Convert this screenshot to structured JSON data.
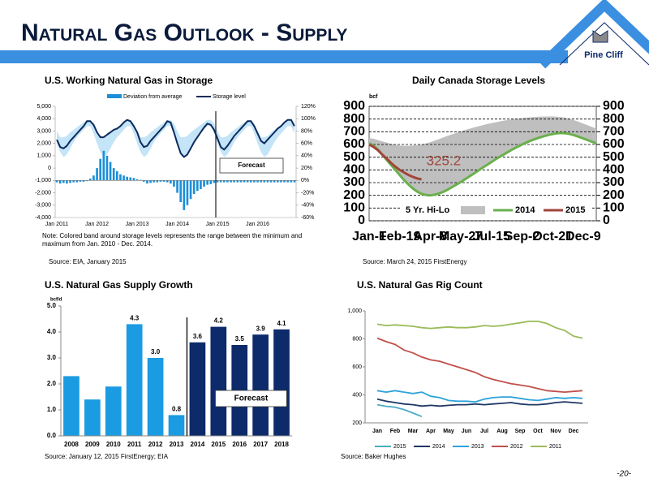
{
  "header": {
    "title": "Natural Gas Outlook - Supply",
    "logo": "Pine Cliff"
  },
  "page_number": "-20-",
  "chart_data": [
    {
      "type": "combo",
      "title": "U.S. Working Natural Gas in Storage",
      "note": "Note:  Colored band around storage levels represents the range between the minimum and maximum from Jan. 2010 - Dec. 2014.",
      "source": "Source:  EIA, January 2015",
      "legend": "top",
      "grid": false,
      "categories": [
        "Jan 2011",
        null,
        null,
        null,
        null,
        null,
        null,
        null,
        null,
        null,
        null,
        null,
        "Jan 2012",
        null,
        null,
        null,
        null,
        null,
        null,
        null,
        null,
        null,
        null,
        null,
        "Jan 2013",
        null,
        null,
        null,
        null,
        null,
        null,
        null,
        null,
        null,
        null,
        null,
        "Jan 2014",
        null,
        null,
        null,
        null,
        null,
        null,
        null,
        null,
        null,
        null,
        null,
        "Jan 2015",
        null,
        null,
        null,
        null,
        null,
        null,
        null,
        null,
        null,
        null,
        null,
        "Jan 2016",
        null,
        null,
        null,
        null,
        null,
        null,
        null,
        null,
        null,
        null,
        null
      ],
      "ylim": [
        -4000,
        5000
      ],
      "yticks": [
        {
          "value": 5000,
          "label": "5,000"
        },
        {
          "value": 4000,
          "label": "4,000"
        },
        {
          "value": 3000,
          "label": "3,000"
        },
        {
          "value": 2000,
          "label": "2,000"
        },
        {
          "value": 1000,
          "label": "1,000"
        },
        0,
        {
          "value": -1000,
          "label": "-1,000"
        },
        {
          "value": -2000,
          "label": "-2,000"
        },
        {
          "value": -3000,
          "label": "-3,000"
        },
        {
          "value": -4000,
          "label": "-4,000"
        }
      ],
      "y2lim": [
        -60,
        120
      ],
      "y2ticks": [
        {
          "value": 120,
          "label": "120%"
        },
        {
          "value": 100,
          "label": "100%"
        },
        {
          "value": 80,
          "label": "80%"
        },
        {
          "value": 60,
          "label": "60%"
        },
        {
          "value": 40,
          "label": "40%"
        },
        {
          "value": 20,
          "label": "20%"
        },
        {
          "value": 0,
          "label": "0%"
        },
        {
          "value": -20,
          "label": "-20%"
        },
        {
          "value": -40,
          "label": "-40%"
        },
        {
          "value": -60,
          "label": "-60%"
        }
      ],
      "band": {
        "color": "#c4e4f7",
        "lower": [
          2000,
          1300,
          900,
          1100,
          1600,
          2100,
          2500,
          2800,
          3100,
          3400,
          3400,
          2800,
          2000,
          1300,
          900,
          1100,
          1600,
          2100,
          2500,
          2800,
          3100,
          3400,
          3400,
          2800,
          2000,
          1300,
          900,
          1100,
          1600,
          2100,
          2500,
          2800,
          3100,
          3400,
          3400,
          2800,
          2000,
          1300,
          900,
          1100,
          1600,
          2100,
          2500,
          2800,
          3100,
          3400,
          3400,
          2800,
          2000,
          1300,
          900,
          1100,
          1600,
          2100,
          2500,
          2800,
          3100,
          3400,
          3400,
          2800,
          2000,
          1300,
          900,
          1100,
          1600,
          2100,
          2500,
          2800,
          3100,
          3400,
          3400,
          2800
        ],
        "upper": [
          3000,
          2500,
          2500,
          2600,
          2900,
          3100,
          3300,
          3500,
          3700,
          3900,
          3900,
          3600,
          3000,
          2500,
          2500,
          2600,
          2900,
          3100,
          3300,
          3500,
          3700,
          3900,
          3900,
          3600,
          3000,
          2500,
          2500,
          2600,
          2900,
          3100,
          3300,
          3500,
          3700,
          3900,
          3900,
          3600,
          3000,
          2500,
          2500,
          2600,
          2900,
          3100,
          3300,
          3500,
          3700,
          3900,
          3900,
          3600,
          3000,
          2500,
          2500,
          2600,
          2900,
          3100,
          3300,
          3500,
          3700,
          3900,
          3900,
          3600,
          3000,
          2500,
          2500,
          2600,
          2900,
          3100,
          3300,
          3500,
          3700,
          3900,
          3900,
          3600
        ]
      },
      "series": [
        {
          "name": "Deviation from average",
          "kind": "bar",
          "axis": "y2",
          "color": "#1b8fd8",
          "values": [
            -3,
            -5,
            -4,
            -5,
            -4,
            -3,
            -3,
            -2,
            -2,
            -1,
            3,
            8,
            20,
            35,
            48,
            40,
            30,
            20,
            15,
            10,
            8,
            6,
            5,
            4,
            2,
            1,
            -2,
            -5,
            -4,
            -3,
            -3,
            -2,
            -2,
            -3,
            -5,
            -10,
            -20,
            -35,
            -48,
            -40,
            -30,
            -22,
            -17,
            -14,
            -10,
            -7,
            -6,
            -4,
            -3,
            -3,
            -3,
            -3,
            -3,
            -3,
            -3,
            -3,
            -3,
            -3,
            -3,
            -3,
            -3,
            -3,
            -3,
            -3,
            -3,
            -3,
            -3,
            -3,
            -3,
            -3,
            -3,
            -3
          ]
        },
        {
          "name": "Storage level",
          "kind": "line",
          "axis": "y",
          "color": "#0d2a5e",
          "values": [
            2300,
            1700,
            1600,
            1800,
            2200,
            2500,
            2800,
            3100,
            3400,
            3800,
            3800,
            3500,
            2900,
            2500,
            2500,
            2700,
            2900,
            3100,
            3200,
            3400,
            3700,
            3900,
            3800,
            3400,
            2900,
            2100,
            1700,
            1800,
            2200,
            2500,
            2800,
            3100,
            3400,
            3800,
            3700,
            2900,
            2000,
            1200,
            900,
            1100,
            1600,
            2100,
            2500,
            2900,
            3300,
            3600,
            3500,
            3100,
            2400,
            1700,
            1500,
            1800,
            2200,
            2600,
            2900,
            3200,
            3500,
            3800,
            3800,
            3400,
            2800,
            2200,
            2000,
            2300,
            2600,
            2900,
            3200,
            3400,
            3700,
            3900,
            3900,
            3400
          ]
        }
      ],
      "annotations": [
        {
          "text": "Forecast",
          "at": "Jan 2015"
        }
      ]
    },
    {
      "type": "area_line",
      "title": "Daily Canada Storage Levels",
      "y_unit": "bcf",
      "source": "Source: March 24, 2015 FirstEnergy",
      "legend": "bottom",
      "grid": true,
      "categories": [
        "Jan-1",
        null,
        null,
        null,
        null,
        null,
        null,
        "Feb-19",
        null,
        null,
        null,
        null,
        null,
        null,
        "Apr-8",
        null,
        null,
        null,
        null,
        null,
        null,
        "May-27",
        null,
        null,
        null,
        null,
        null,
        null,
        "Jul-15",
        null,
        null,
        null,
        null,
        null,
        null,
        "Sep-2",
        null,
        null,
        null,
        null,
        null,
        null,
        "Oct-21",
        null,
        null,
        null,
        null,
        null,
        null,
        "Dec-9",
        null,
        null,
        null
      ],
      "ylim": [
        0,
        900
      ],
      "yticks": [
        0,
        100,
        200,
        300,
        400,
        500,
        600,
        700,
        800,
        900
      ],
      "y2lim": [
        0,
        900
      ],
      "y2ticks": [
        0,
        100,
        200,
        300,
        400,
        500,
        600,
        700,
        800,
        900
      ],
      "series": [
        {
          "name": "5 Yr. Hi-Lo",
          "kind": "band",
          "color": "#bfbfbf",
          "upper": [
            650,
            645,
            635,
            625,
            615,
            605,
            598,
            592,
            590,
            590,
            592,
            595,
            600,
            608,
            618,
            630,
            642,
            655,
            668,
            680,
            692,
            703,
            714,
            724,
            734,
            743,
            752,
            760,
            768,
            775,
            782,
            788,
            794,
            799,
            803,
            807,
            811,
            814,
            817,
            819,
            820,
            820,
            820,
            819,
            816,
            810,
            800,
            790,
            778,
            765,
            752,
            738,
            725
          ],
          "lower": [
            590,
            575,
            555,
            520,
            480,
            440,
            400,
            360,
            320,
            285,
            255,
            230,
            212,
            203,
            200,
            205,
            215,
            228,
            245,
            265,
            285,
            305,
            328,
            350,
            372,
            395,
            418,
            440,
            462,
            485,
            505,
            525,
            545,
            565,
            582,
            600,
            615,
            630,
            643,
            655,
            665,
            675,
            682,
            688,
            690,
            688,
            682,
            672,
            660,
            648,
            635,
            622,
            610
          ]
        },
        {
          "name": "2014",
          "kind": "line",
          "color": "#6ab04c",
          "values": [
            610,
            590,
            560,
            520,
            480,
            440,
            400,
            360,
            320,
            285,
            255,
            230,
            212,
            203,
            200,
            205,
            215,
            228,
            245,
            265,
            285,
            305,
            328,
            350,
            372,
            395,
            418,
            440,
            462,
            485,
            505,
            525,
            545,
            565,
            582,
            600,
            615,
            630,
            643,
            655,
            665,
            675,
            682,
            688,
            690,
            688,
            682,
            672,
            660,
            648,
            635,
            622,
            610
          ]
        },
        {
          "name": "2015",
          "kind": "line",
          "color": "#a0453a",
          "values": [
            600,
            580,
            555,
            520,
            490,
            455,
            425,
            400,
            380,
            360,
            345,
            333,
            325.2,
            null,
            null,
            null,
            null,
            null,
            null,
            null,
            null,
            null,
            null,
            null,
            null,
            null,
            null,
            null,
            null,
            null,
            null,
            null,
            null,
            null,
            null,
            null,
            null,
            null,
            null,
            null,
            null,
            null,
            null,
            null,
            null,
            null,
            null,
            null,
            null,
            null,
            null,
            null,
            null
          ],
          "value_labels": [
            null,
            null,
            null,
            null,
            null,
            null,
            null,
            null,
            null,
            null,
            null,
            null,
            "325.2",
            null,
            null,
            null,
            null,
            null,
            null,
            null,
            null,
            null,
            null,
            null,
            null,
            null,
            null,
            null,
            null,
            null,
            null,
            null,
            null,
            null,
            null,
            null,
            null,
            null,
            null,
            null,
            null,
            null,
            null,
            null,
            null,
            null,
            null,
            null,
            null,
            null,
            null,
            null,
            null
          ]
        }
      ]
    },
    {
      "type": "bar",
      "title": "U.S. Natural Gas Supply Growth",
      "y_unit": "bcf/d",
      "source": "Source: January 12, 2015 FirstEnergy; EIA",
      "grid": false,
      "categories": [
        "2008",
        "2009",
        "2010",
        "2011",
        "2012",
        "2013",
        "2014",
        "2015",
        "2016",
        "2017",
        "2018"
      ],
      "values": [
        2.3,
        1.4,
        1.9,
        4.3,
        3.0,
        0.8,
        3.6,
        4.2,
        3.5,
        3.9,
        4.1
      ],
      "value_labels": [
        null,
        null,
        null,
        "4.3",
        "3.0",
        "0.8",
        "3.6",
        "4.2",
        "3.5",
        "3.9",
        "4.1"
      ],
      "colors": [
        "#1a9be2",
        "#1a9be2",
        "#1a9be2",
        "#1a9be2",
        "#1a9be2",
        "#1a9be2",
        "#0d2a6b",
        "#0d2a6b",
        "#0d2a6b",
        "#0d2a6b",
        "#0d2a6b"
      ],
      "ylim": [
        0,
        5
      ],
      "yticks": [
        {
          "value": 0,
          "label": "0.0"
        },
        {
          "value": 1,
          "label": "1.0"
        },
        {
          "value": 2,
          "label": "2.0"
        },
        {
          "value": 3,
          "label": "3.0"
        },
        {
          "value": 4,
          "label": "4.0"
        },
        {
          "value": 5,
          "label": "5.0"
        }
      ],
      "annotations": [
        {
          "text": "Forecast",
          "at": "2014"
        }
      ]
    },
    {
      "type": "line",
      "title": "U.S. Natural Gas Rig Count",
      "source": "Source: Baker Hughes",
      "legend": "bottom",
      "grid": false,
      "categories": [
        "Jan",
        null,
        "Feb",
        null,
        "Mar",
        null,
        "Apr",
        null,
        "May",
        null,
        "Jun",
        null,
        "Jul",
        null,
        "Aug",
        null,
        "Sep",
        null,
        "Oct",
        null,
        "Nov",
        null,
        "Dec",
        null
      ],
      "ylim": [
        200,
        1000
      ],
      "yticks": [
        200,
        400,
        600,
        800,
        {
          "value": 1000,
          "label": "1,000"
        }
      ],
      "series": [
        {
          "name": "2015",
          "color": "#4bacc6",
          "values": [
            330,
            318,
            312,
            295,
            270,
            245,
            null,
            null,
            null,
            null,
            null,
            null,
            null,
            null,
            null,
            null,
            null,
            null,
            null,
            null,
            null,
            null,
            null,
            null
          ]
        },
        {
          "name": "2014",
          "color": "#1f3864",
          "values": [
            370,
            355,
            345,
            335,
            330,
            320,
            325,
            320,
            325,
            330,
            330,
            335,
            330,
            335,
            340,
            345,
            335,
            330,
            330,
            335,
            345,
            350,
            345,
            340
          ]
        },
        {
          "name": "2013",
          "color": "#2ea3d9",
          "values": [
            430,
            420,
            430,
            420,
            410,
            420,
            390,
            380,
            360,
            355,
            355,
            350,
            370,
            380,
            385,
            385,
            375,
            365,
            360,
            370,
            380,
            375,
            380,
            375
          ]
        },
        {
          "name": "2012",
          "color": "#c0504d",
          "values": [
            805,
            780,
            760,
            720,
            700,
            670,
            650,
            640,
            620,
            600,
            580,
            560,
            530,
            510,
            495,
            480,
            470,
            460,
            445,
            430,
            425,
            420,
            425,
            430
          ]
        },
        {
          "name": "2011",
          "color": "#9bbb59",
          "values": [
            905,
            895,
            900,
            895,
            890,
            880,
            875,
            880,
            885,
            880,
            880,
            885,
            895,
            890,
            895,
            905,
            915,
            925,
            925,
            910,
            880,
            860,
            820,
            805
          ]
        }
      ]
    }
  ]
}
